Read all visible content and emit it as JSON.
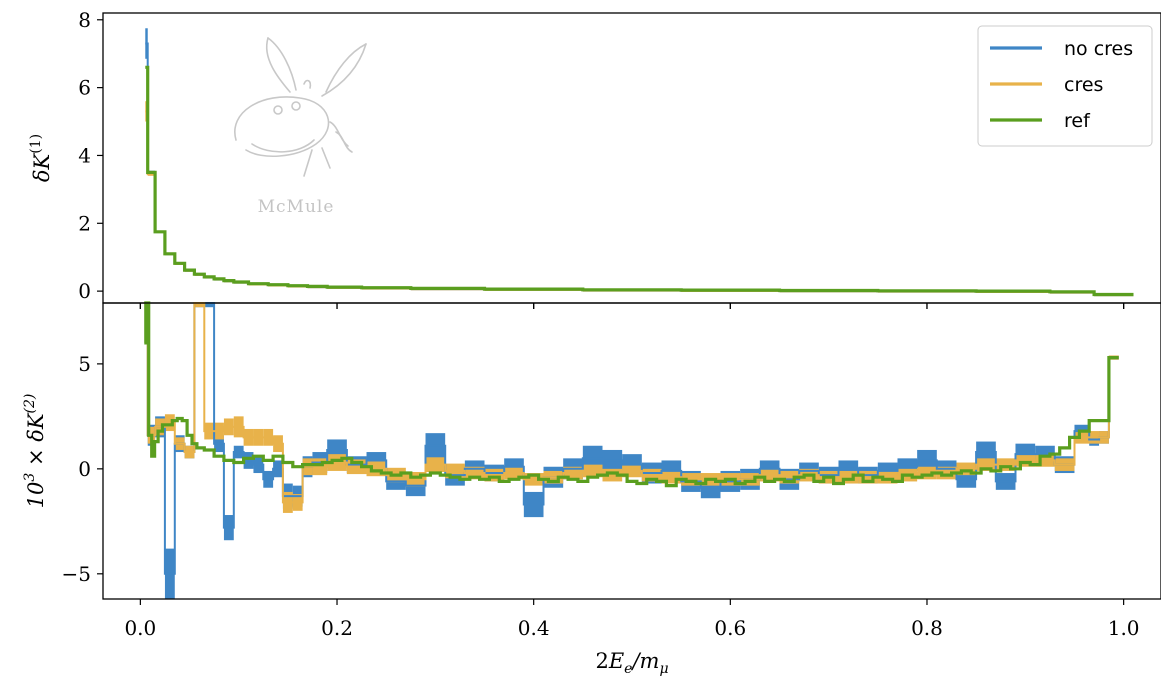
{
  "chart_data": [
    {
      "type": "line",
      "panel": "top",
      "step": true,
      "ylabel": "δK(1)",
      "xlim": [
        -0.038,
        1.038
      ],
      "ylim": [
        -0.35,
        8.2
      ],
      "yticks": [
        0,
        2,
        4,
        6,
        8
      ],
      "yticklabels": [
        "0",
        "2",
        "4",
        "6",
        "8"
      ],
      "legend": {
        "position": "top-right",
        "entries": [
          "no cres",
          "cres",
          "ref"
        ]
      },
      "logo_text": "McMule",
      "series": [
        {
          "name": "no cres",
          "color": "#3f86c6",
          "band": true,
          "x": [
            0.005,
            0.01,
            0.02,
            0.03,
            0.04,
            0.05,
            0.06,
            0.07,
            0.08,
            0.09,
            0.1,
            0.12,
            0.14,
            0.16,
            0.18,
            0.2,
            0.25,
            0.3,
            0.4,
            0.5,
            0.6,
            0.7,
            0.8,
            0.9,
            0.95,
            0.99
          ],
          "y": [
            7.3,
            3.5,
            1.75,
            1.1,
            0.82,
            0.62,
            0.5,
            0.42,
            0.36,
            0.31,
            0.27,
            0.22,
            0.19,
            0.16,
            0.14,
            0.12,
            0.1,
            0.08,
            0.06,
            0.04,
            0.03,
            0.02,
            0.01,
            0.0,
            -0.02,
            -0.1
          ],
          "err": [
            0.45,
            0.05,
            0.03,
            0.02,
            0.01,
            0.01,
            0.01,
            0.01,
            0.01,
            0.01,
            0.01,
            0.005,
            0.005,
            0.005,
            0.005,
            0.005,
            0.005,
            0.005,
            0.005,
            0.005,
            0.005,
            0.005,
            0.005,
            0.005,
            0.005,
            0.01
          ]
        },
        {
          "name": "cres",
          "color": "#e8b24a",
          "band": true,
          "x": [
            0.005,
            0.01,
            0.02,
            0.03,
            0.04,
            0.05,
            0.06,
            0.07,
            0.08,
            0.09,
            0.1,
            0.12,
            0.14,
            0.16,
            0.18,
            0.2,
            0.25,
            0.3,
            0.4,
            0.5,
            0.6,
            0.7,
            0.8,
            0.9,
            0.95,
            0.99
          ],
          "y": [
            5.3,
            3.45,
            1.75,
            1.1,
            0.82,
            0.62,
            0.5,
            0.42,
            0.36,
            0.31,
            0.27,
            0.22,
            0.19,
            0.16,
            0.14,
            0.12,
            0.1,
            0.08,
            0.06,
            0.04,
            0.03,
            0.02,
            0.01,
            0.0,
            -0.02,
            -0.1
          ],
          "err": [
            0.3,
            0.05,
            0.03,
            0.02,
            0.01,
            0.01,
            0.01,
            0.01,
            0.01,
            0.01,
            0.01,
            0.005,
            0.005,
            0.005,
            0.005,
            0.005,
            0.005,
            0.005,
            0.005,
            0.005,
            0.005,
            0.005,
            0.005,
            0.005,
            0.005,
            0.01
          ]
        },
        {
          "name": "ref",
          "color": "#5a9e1f",
          "band": false,
          "x": [
            0.005,
            0.01,
            0.02,
            0.03,
            0.04,
            0.05,
            0.06,
            0.07,
            0.08,
            0.09,
            0.1,
            0.12,
            0.14,
            0.16,
            0.18,
            0.2,
            0.25,
            0.3,
            0.4,
            0.5,
            0.6,
            0.7,
            0.8,
            0.9,
            0.95,
            0.99
          ],
          "y": [
            6.6,
            3.5,
            1.75,
            1.1,
            0.82,
            0.62,
            0.5,
            0.42,
            0.36,
            0.31,
            0.27,
            0.22,
            0.19,
            0.16,
            0.14,
            0.12,
            0.1,
            0.08,
            0.06,
            0.04,
            0.03,
            0.02,
            0.01,
            0.0,
            -0.02,
            -0.1
          ]
        }
      ]
    },
    {
      "type": "line",
      "panel": "bottom",
      "step": true,
      "ylabel": "10³ × δK(2)",
      "xlabel": "2Eₑ/m_μ",
      "xlim": [
        -0.038,
        1.038
      ],
      "ylim": [
        -6.2,
        7.9
      ],
      "yticks": [
        -5,
        0,
        5
      ],
      "yticklabels": [
        "−5",
        "0",
        "5"
      ],
      "xticks": [
        0.0,
        0.2,
        0.4,
        0.6,
        0.8,
        1.0
      ],
      "xticklabels": [
        "0.0",
        "0.2",
        "0.4",
        "0.6",
        "0.8",
        "1.0"
      ],
      "series": [
        {
          "name": "no cres",
          "color": "#3f86c6",
          "band": true,
          "x": [
            0.005,
            0.01,
            0.02,
            0.03,
            0.04,
            0.05,
            0.06,
            0.07,
            0.08,
            0.09,
            0.1,
            0.11,
            0.12,
            0.13,
            0.14,
            0.15,
            0.16,
            0.17,
            0.18,
            0.2,
            0.22,
            0.24,
            0.26,
            0.28,
            0.3,
            0.32,
            0.34,
            0.36,
            0.38,
            0.4,
            0.42,
            0.44,
            0.46,
            0.48,
            0.5,
            0.52,
            0.54,
            0.56,
            0.58,
            0.6,
            0.62,
            0.64,
            0.66,
            0.68,
            0.7,
            0.72,
            0.74,
            0.76,
            0.78,
            0.8,
            0.82,
            0.84,
            0.86,
            0.88,
            0.9,
            0.92,
            0.94,
            0.96,
            0.97,
            0.98,
            0.99
          ],
          "y": [
            8.0,
            1.6,
            2.0,
            -5.0,
            1.2,
            0.8,
            8.0,
            8.0,
            1.2,
            -2.8,
            0.8,
            0.4,
            0.2,
            -0.5,
            0.0,
            -1.3,
            -1.3,
            0.1,
            0.3,
            0.9,
            0.2,
            0.4,
            -0.6,
            -0.8,
            1.1,
            -0.3,
            0.0,
            -0.2,
            0.1,
            -1.7,
            -0.4,
            0.0,
            0.5,
            0.4,
            0.2,
            -0.2,
            -0.1,
            -0.6,
            -0.9,
            -0.6,
            -0.5,
            0.0,
            -0.5,
            -0.1,
            -0.3,
            0.0,
            -0.3,
            -0.1,
            0.1,
            0.4,
            0.0,
            -0.5,
            0.8,
            -0.6,
            0.7,
            0.7,
            0.2,
            1.8,
            1.4,
            1.5,
            5.3
          ],
          "err": [
            0.3,
            0.5,
            0.5,
            1.2,
            0.4,
            0.3,
            0.3,
            0.3,
            0.4,
            0.6,
            0.3,
            0.4,
            0.4,
            0.4,
            0.4,
            0.6,
            0.5,
            0.5,
            0.5,
            0.5,
            0.4,
            0.4,
            0.4,
            0.5,
            0.6,
            0.5,
            0.4,
            0.4,
            0.4,
            0.6,
            0.5,
            0.5,
            0.6,
            0.5,
            0.5,
            0.5,
            0.5,
            0.5,
            0.5,
            0.5,
            0.5,
            0.4,
            0.5,
            0.4,
            0.4,
            0.4,
            0.4,
            0.4,
            0.4,
            0.5,
            0.4,
            0.4,
            0.5,
            0.4,
            0.5,
            0.4,
            0.4,
            0.3,
            0.3,
            0.3,
            0.1
          ]
        },
        {
          "name": "cres",
          "color": "#e8b24a",
          "band": true,
          "x": [
            0.005,
            0.01,
            0.02,
            0.03,
            0.04,
            0.05,
            0.06,
            0.07,
            0.08,
            0.09,
            0.1,
            0.11,
            0.12,
            0.13,
            0.14,
            0.15,
            0.16,
            0.17,
            0.18,
            0.2,
            0.22,
            0.24,
            0.26,
            0.28,
            0.3,
            0.32,
            0.34,
            0.36,
            0.38,
            0.4,
            0.42,
            0.44,
            0.46,
            0.48,
            0.5,
            0.52,
            0.54,
            0.56,
            0.58,
            0.6,
            0.62,
            0.64,
            0.66,
            0.68,
            0.7,
            0.72,
            0.74,
            0.76,
            0.78,
            0.8,
            0.82,
            0.84,
            0.86,
            0.88,
            0.9,
            0.92,
            0.94,
            0.96,
            0.97,
            0.98,
            0.99
          ],
          "y": [
            8.0,
            1.6,
            2.0,
            2.2,
            1.2,
            0.8,
            8.0,
            1.8,
            1.8,
            2.0,
            2.0,
            1.5,
            1.5,
            1.5,
            1.2,
            -1.6,
            -1.6,
            0.1,
            0.1,
            0.3,
            0.1,
            0.0,
            -0.3,
            -0.5,
            0.2,
            -0.1,
            -0.2,
            -0.3,
            -0.2,
            -0.5,
            -0.4,
            -0.2,
            -0.1,
            -0.3,
            -0.1,
            -0.3,
            -0.4,
            -0.5,
            -0.5,
            -0.5,
            -0.5,
            -0.3,
            -0.4,
            -0.3,
            -0.4,
            -0.4,
            -0.4,
            -0.4,
            -0.3,
            -0.2,
            -0.2,
            0.0,
            0.2,
            0.2,
            0.4,
            0.4,
            0.2,
            1.5,
            1.5,
            1.5,
            5.3
          ],
          "err": [
            0.3,
            0.4,
            0.4,
            0.4,
            0.3,
            0.3,
            0.3,
            0.4,
            0.4,
            0.4,
            0.5,
            0.4,
            0.4,
            0.4,
            0.4,
            0.5,
            0.4,
            0.4,
            0.4,
            0.4,
            0.35,
            0.35,
            0.35,
            0.35,
            0.35,
            0.35,
            0.3,
            0.3,
            0.3,
            0.3,
            0.3,
            0.3,
            0.3,
            0.3,
            0.3,
            0.3,
            0.3,
            0.3,
            0.3,
            0.3,
            0.3,
            0.3,
            0.3,
            0.3,
            0.3,
            0.3,
            0.3,
            0.3,
            0.3,
            0.3,
            0.3,
            0.3,
            0.3,
            0.3,
            0.3,
            0.3,
            0.3,
            0.3,
            0.3,
            0.3,
            0.1
          ]
        },
        {
          "name": "ref",
          "color": "#5a9e1f",
          "band": false,
          "x": [
            0.004,
            0.007,
            0.01,
            0.013,
            0.016,
            0.02,
            0.025,
            0.03,
            0.035,
            0.04,
            0.045,
            0.05,
            0.055,
            0.06,
            0.07,
            0.08,
            0.09,
            0.1,
            0.11,
            0.12,
            0.13,
            0.14,
            0.15,
            0.16,
            0.17,
            0.18,
            0.19,
            0.2,
            0.21,
            0.22,
            0.23,
            0.24,
            0.25,
            0.26,
            0.27,
            0.28,
            0.29,
            0.3,
            0.31,
            0.32,
            0.33,
            0.34,
            0.35,
            0.36,
            0.37,
            0.38,
            0.39,
            0.4,
            0.41,
            0.42,
            0.43,
            0.44,
            0.45,
            0.46,
            0.47,
            0.48,
            0.49,
            0.5,
            0.51,
            0.52,
            0.53,
            0.54,
            0.55,
            0.56,
            0.57,
            0.58,
            0.59,
            0.6,
            0.61,
            0.62,
            0.63,
            0.64,
            0.65,
            0.66,
            0.67,
            0.68,
            0.69,
            0.7,
            0.71,
            0.72,
            0.73,
            0.74,
            0.75,
            0.76,
            0.77,
            0.78,
            0.79,
            0.8,
            0.81,
            0.82,
            0.83,
            0.84,
            0.85,
            0.86,
            0.87,
            0.88,
            0.89,
            0.9,
            0.91,
            0.92,
            0.93,
            0.94,
            0.95,
            0.96,
            0.97,
            0.98,
            0.99
          ],
          "y": [
            6.0,
            8.0,
            1.6,
            0.6,
            1.3,
            1.8,
            2.1,
            2.1,
            2.3,
            2.4,
            2.3,
            1.6,
            1.2,
            1.0,
            0.9,
            0.6,
            0.4,
            0.3,
            0.5,
            0.6,
            0.4,
            0.6,
            0.3,
            0.1,
            0.2,
            0.2,
            0.3,
            0.4,
            0.5,
            0.3,
            0.1,
            -0.1,
            -0.2,
            -0.3,
            -0.2,
            -0.4,
            -0.3,
            -0.2,
            -0.3,
            -0.4,
            -0.5,
            -0.4,
            -0.5,
            -0.4,
            -0.6,
            -0.5,
            -0.4,
            -0.3,
            -0.5,
            -0.6,
            -0.4,
            -0.5,
            -0.6,
            -0.4,
            -0.3,
            -0.2,
            -0.3,
            -0.6,
            -0.7,
            -0.5,
            -0.6,
            -0.8,
            -0.5,
            -0.6,
            -0.7,
            -0.5,
            -0.6,
            -0.5,
            -0.7,
            -0.6,
            -0.4,
            -0.6,
            -0.5,
            -0.6,
            -0.4,
            -0.3,
            -0.6,
            -0.4,
            -0.7,
            -0.5,
            -0.3,
            -0.6,
            -0.4,
            -0.5,
            -0.6,
            -0.3,
            -0.4,
            -0.3,
            -0.2,
            -0.3,
            -0.2,
            -0.1,
            -0.2,
            0.0,
            -0.1,
            0.1,
            0.0,
            0.3,
            0.2,
            0.6,
            0.7,
            1.0,
            1.5,
            1.8,
            2.3,
            2.3,
            5.3
          ]
        }
      ]
    }
  ]
}
